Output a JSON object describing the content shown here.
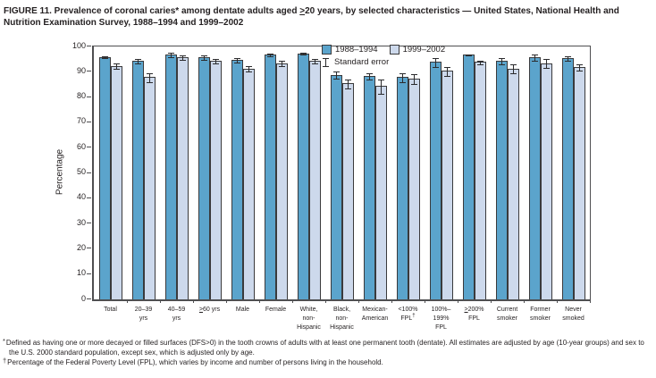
{
  "title": "FIGURE 11. Prevalence of coronal caries* among dentate adults aged ≥20 years, by selected characteristics — United States, National Health and Nutrition Examination Survey, 1988–1994 and 1999–2002",
  "chart_data": {
    "type": "bar",
    "ylabel": "Percentage",
    "xlabel": "",
    "ylim": [
      0,
      100
    ],
    "yticks": [
      0,
      10,
      20,
      30,
      40,
      50,
      60,
      70,
      80,
      90,
      100
    ],
    "grid": false,
    "legend_position": "top-inside",
    "legend_note": "Standard error",
    "categories": [
      "Total",
      "20–39 yrs",
      "40–59 yrs",
      "≥60 yrs",
      "Male",
      "Female",
      "White, non-Hispanic",
      "Black, non-Hispanic",
      "Mexican-American",
      "<100% FPL†",
      "100%–199% FPL",
      "≥200% FPL",
      "Current smoker",
      "Former smoker",
      "Never smoked"
    ],
    "category_label_lines": [
      [
        "Total"
      ],
      [
        "20–39",
        "yrs"
      ],
      [
        "40–59",
        "yrs"
      ],
      [
        "≥60 yrs"
      ],
      [
        "Male"
      ],
      [
        "Female"
      ],
      [
        "White,",
        "non-",
        "Hispanic"
      ],
      [
        "Black,",
        "non-",
        "Hispanic"
      ],
      [
        "Mexican-",
        "American"
      ],
      [
        "<100%",
        "FPL†"
      ],
      [
        "100%–",
        "199%",
        "FPL"
      ],
      [
        "≥200%",
        "FPL"
      ],
      [
        "Current",
        "smoker"
      ],
      [
        "Former",
        "smoker"
      ],
      [
        "Never",
        "smoked"
      ]
    ],
    "series": [
      {
        "name": "1988–1994",
        "color": "#5ba4cc",
        "values": [
          95.5,
          94,
          96.5,
          95.5,
          94.5,
          96.5,
          97,
          88.5,
          88,
          87.5,
          93.5,
          96.5,
          94,
          95.5,
          95
        ],
        "standard_errors": [
          0.5,
          1,
          1,
          1,
          1,
          0.8,
          0.6,
          1.5,
          1.5,
          2,
          2,
          0.5,
          1.5,
          1.5,
          1
        ]
      },
      {
        "name": "1999–2002",
        "color": "#cdd9ec",
        "values": [
          92,
          87.5,
          95.5,
          94,
          91,
          93,
          94,
          85,
          84,
          87,
          90,
          93.5,
          91,
          93,
          91.5
        ],
        "standard_errors": [
          1.2,
          2,
          1,
          1,
          1.3,
          1.2,
          1,
          2,
          3,
          2.2,
          2,
          1,
          1.8,
          2,
          1.5
        ]
      }
    ]
  },
  "footnotes": [
    {
      "marker": "*",
      "text": "Defined as having one or more decayed or filled surfaces (DFS>0) in the tooth crowns of adults with at least one permanent tooth (dentate). All estimates are adjusted by age (10-year groups) and sex to the U.S. 2000 standard population, except sex, which is adjusted only by age."
    },
    {
      "marker": "†",
      "text": "Percentage of the Federal Poverty Level (FPL), which varies by income and number of persons living in the household."
    }
  ],
  "colors": {
    "series_1988_1994": "#5ba4cc",
    "series_1999_2002": "#cdd9ec",
    "axis": "#4f4f51",
    "text": "#231f20"
  }
}
